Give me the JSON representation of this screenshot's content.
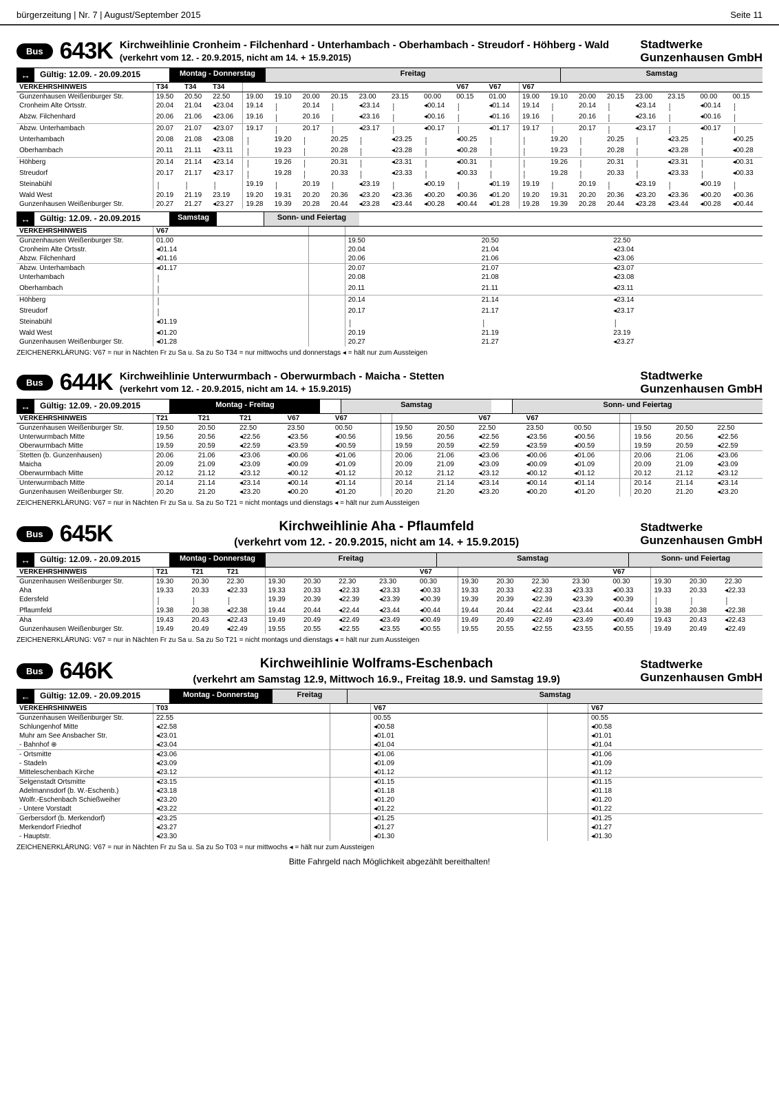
{
  "page": {
    "header_left": "bürgerzeitung | Nr. 7 | August/September 2015",
    "header_right": "Seite 11"
  },
  "brand_top": "Stadtwerke",
  "brand_bottom": "Gunzenhausen GmbH",
  "bus_label": "Bus",
  "valid_label": "Gültig: 12.09. - 20.09.2015",
  "arrow_both": "↔",
  "arrow_left": "←",
  "line_643k": {
    "number": "643K",
    "title": "Kirchweihlinie Cronheim - Filchenhard - Unterhambach - Oberhambach - Streudorf - Höhberg - Wald",
    "subtitle": "(verkehrt vom 12. - 20.9.2015, nicht am 14. + 15.9.2015)",
    "dh_monthu": "Montag - Donnerstag",
    "dh_fri": "Freitag",
    "dh_sat": "Samstag",
    "dh_sun": "Sonn- und Feiertag",
    "vh": "VERKEHRSHINWEIS",
    "hints_a": [
      "T34",
      "T34",
      "T34",
      "",
      "",
      "",
      "",
      "",
      "",
      "",
      "V67",
      "V67",
      "V67",
      "",
      "",
      "",
      "",
      "",
      "",
      "",
      "V67",
      "V67"
    ],
    "sec1": {
      "stops": [
        "Gunzenhausen Weißenburger Str.",
        "Cronheim Alte Ortsstr.",
        "Abzw. Filchenhard"
      ],
      "mondo": [
        [
          "19.50",
          "20.50",
          "22.50"
        ],
        [
          "20.04",
          "21.04",
          "◂23.04"
        ],
        [
          "20.06",
          "21.06",
          "◂23.06"
        ]
      ],
      "fri": [
        [
          "19.00",
          "19.10",
          "20.00",
          "20.15",
          "23.00",
          "23.15",
          "00.00",
          "00.15",
          "01.00"
        ],
        [
          "19.14",
          "⸽",
          "20.14",
          "⸽",
          "◂23.14",
          "⸽",
          "◂00.14",
          "⸽",
          "◂01.14"
        ],
        [
          "19.16",
          "⸽",
          "20.16",
          "⸽",
          "◂23.16",
          "⸽",
          "◂00.16",
          "⸽",
          "◂01.16"
        ]
      ],
      "sat": [
        [
          "19.00",
          "19.10",
          "20.00",
          "20.15",
          "23.00",
          "23.15",
          "00.00",
          "00.15"
        ],
        [
          "19.14",
          "⸽",
          "20.14",
          "⸽",
          "◂23.14",
          "⸽",
          "◂00.14",
          "⸽"
        ],
        [
          "19.16",
          "⸽",
          "20.16",
          "⸽",
          "◂23.16",
          "⸽",
          "◂00.16",
          "⸽"
        ]
      ]
    },
    "sec2": {
      "stops": [
        "Abzw. Unterhambach",
        "Unterhambach",
        "Oberhambach"
      ],
      "mondo": [
        [
          "20.07",
          "21.07",
          "◂23.07"
        ],
        [
          "20.08",
          "21.08",
          "◂23.08"
        ],
        [
          "20.11",
          "21.11",
          "◂23.11"
        ]
      ],
      "fri": [
        [
          "19.17",
          "⸽",
          "20.17",
          "⸽",
          "◂23.17",
          "⸽",
          "◂00.17",
          "⸽",
          "◂01.17"
        ],
        [
          "⸽",
          "19.20",
          "⸽",
          "20.25",
          "⸽",
          "◂23.25",
          "⸽",
          "◂00.25",
          "⸽"
        ],
        [
          "⸽",
          "19.23",
          "⸽",
          "20.28",
          "⸽",
          "◂23.28",
          "⸽",
          "◂00.28",
          "⸽"
        ]
      ],
      "sat": [
        [
          "19.17",
          "⸽",
          "20.17",
          "⸽",
          "◂23.17",
          "⸽",
          "◂00.17",
          "⸽"
        ],
        [
          "⸽",
          "19.20",
          "⸽",
          "20.25",
          "⸽",
          "◂23.25",
          "⸽",
          "◂00.25"
        ],
        [
          "⸽",
          "19.23",
          "⸽",
          "20.28",
          "⸽",
          "◂23.28",
          "⸽",
          "◂00.28"
        ]
      ]
    },
    "sec3": {
      "stops": [
        "Höhberg",
        "Streudorf",
        "Steinabühl",
        "Wald West",
        "Gunzenhausen Weißenburger Str."
      ],
      "mondo": [
        [
          "20.14",
          "21.14",
          "◂23.14"
        ],
        [
          "20.17",
          "21.17",
          "◂23.17"
        ],
        [
          "⸽",
          "⸽",
          "⸽"
        ],
        [
          "20.19",
          "21.19",
          "23.19"
        ],
        [
          "20.27",
          "21.27",
          "◂23.27"
        ]
      ],
      "fri": [
        [
          "⸽",
          "19.26",
          "⸽",
          "20.31",
          "⸽",
          "◂23.31",
          "⸽",
          "◂00.31",
          "⸽"
        ],
        [
          "⸽",
          "19.28",
          "⸽",
          "20.33",
          "⸽",
          "◂23.33",
          "⸽",
          "◂00.33",
          "⸽"
        ],
        [
          "19.19",
          "⸽",
          "20.19",
          "⸽",
          "◂23.19",
          "⸽",
          "◂00.19",
          "⸽",
          "◂01.19"
        ],
        [
          "19.20",
          "19.31",
          "20.20",
          "20.36",
          "◂23.20",
          "◂23.36",
          "◂00.20",
          "◂00.36",
          "◂01.20"
        ],
        [
          "19.28",
          "19.39",
          "20.28",
          "20.44",
          "◂23.28",
          "◂23.44",
          "◂00.28",
          "◂00.44",
          "◂01.28"
        ]
      ],
      "sat": [
        [
          "⸽",
          "19.26",
          "⸽",
          "20.31",
          "⸽",
          "◂23.31",
          "⸽",
          "◂00.31"
        ],
        [
          "⸽",
          "19.28",
          "⸽",
          "20.33",
          "⸽",
          "◂23.33",
          "⸽",
          "◂00.33"
        ],
        [
          "19.19",
          "⸽",
          "20.19",
          "⸽",
          "◂23.19",
          "⸽",
          "◂00.19",
          "⸽"
        ],
        [
          "19.20",
          "19.31",
          "20.20",
          "20.36",
          "◂23.20",
          "◂23.36",
          "◂00.20",
          "◂00.36"
        ],
        [
          "19.28",
          "19.39",
          "20.28",
          "20.44",
          "◂23.28",
          "◂23.44",
          "◂00.28",
          "◂00.44"
        ]
      ]
    },
    "return_dh_sat": "Samstag",
    "return_dh_sun": "Sonn- und Feiertag",
    "return_hints": [
      "V67"
    ],
    "rsec1": {
      "stops": [
        "Gunzenhausen Weißenburger Str.",
        "Cronheim Alte Ortsstr.",
        "Abzw. Filchenhard"
      ],
      "sat": [
        [
          "01.00"
        ],
        [
          "◂01.14"
        ],
        [
          "◂01.16"
        ]
      ],
      "sun": [
        [
          "19.50",
          "20.50",
          "22.50"
        ],
        [
          "20.04",
          "21.04",
          "◂23.04"
        ],
        [
          "20.06",
          "21.06",
          "◂23.06"
        ]
      ]
    },
    "rsec2": {
      "stops": [
        "Abzw. Unterhambach",
        "Unterhambach",
        "Oberhambach"
      ],
      "sat": [
        [
          "◂01.17"
        ],
        [
          "⸽"
        ],
        [
          "⸽"
        ]
      ],
      "sun": [
        [
          "20.07",
          "21.07",
          "◂23.07"
        ],
        [
          "20.08",
          "21.08",
          "◂23.08"
        ],
        [
          "20.11",
          "21.11",
          "◂23.11"
        ]
      ]
    },
    "rsec3": {
      "stops": [
        "Höhberg",
        "Streudorf",
        "Steinabühl",
        "Wald West",
        "Gunzenhausen Weißenburger Str."
      ],
      "sat": [
        [
          "⸽"
        ],
        [
          "⸽"
        ],
        [
          "◂01.19"
        ],
        [
          "◂01.20"
        ],
        [
          "◂01.28"
        ]
      ],
      "sun": [
        [
          "20.14",
          "21.14",
          "◂23.14"
        ],
        [
          "20.17",
          "21.17",
          "◂23.17"
        ],
        [
          "⸽",
          "⸽",
          "⸽"
        ],
        [
          "20.19",
          "21.19",
          "23.19"
        ],
        [
          "20.27",
          "21.27",
          "◂23.27"
        ]
      ]
    },
    "footnote": "ZEICHENERKLÄRUNG:  V67 = nur in Nächten Fr zu Sa u. Sa zu So   T34 = nur mittwochs und donnerstags   ◂ = hält nur zum Aussteigen"
  },
  "line_644k": {
    "number": "644K",
    "title": "Kirchweihlinie Unterwurmbach - Oberwurmbach - Maicha - Stetten",
    "subtitle": "(verkehrt vom 12. - 20.9.2015, nicht am 14. + 15.9.2015)",
    "dh_monfri": "Montag - Freitag",
    "dh_sat": "Samstag",
    "dh_sun": "Sonn- und Feiertag",
    "vh": "VERKEHRSHINWEIS",
    "hints": [
      "T21",
      "T21",
      "T21",
      "V67",
      "V67",
      "",
      "",
      "",
      "V67",
      "V67",
      "",
      "",
      ""
    ],
    "sec1": {
      "stops": [
        "Gunzenhausen Weißenburger Str.",
        "Unterwurmbach Mitte",
        "Oberwurmbach Mitte"
      ],
      "monfri": [
        [
          "19.50",
          "20.50",
          "22.50",
          "23.50",
          "00.50"
        ],
        [
          "19.56",
          "20.56",
          "◂22.56",
          "◂23.56",
          "◂00.56"
        ],
        [
          "19.59",
          "20.59",
          "◂22.59",
          "◂23.59",
          "◂00.59"
        ]
      ],
      "sat": [
        [
          "19.50",
          "20.50",
          "22.50",
          "23.50",
          "00.50"
        ],
        [
          "19.56",
          "20.56",
          "◂22.56",
          "◂23.56",
          "◂00.56"
        ],
        [
          "19.59",
          "20.59",
          "◂22.59",
          "◂23.59",
          "◂00.59"
        ]
      ],
      "sun": [
        [
          "19.50",
          "20.50",
          "22.50"
        ],
        [
          "19.56",
          "20.56",
          "◂22.56"
        ],
        [
          "19.59",
          "20.59",
          "◂22.59"
        ]
      ]
    },
    "sec2": {
      "stops": [
        "Stetten (b. Gunzenhausen)",
        "Maicha",
        "Oberwurmbach Mitte"
      ],
      "monfri": [
        [
          "20.06",
          "21.06",
          "◂23.06",
          "◂00.06",
          "◂01.06"
        ],
        [
          "20.09",
          "21.09",
          "◂23.09",
          "◂00.09",
          "◂01.09"
        ],
        [
          "20.12",
          "21.12",
          "◂23.12",
          "◂00.12",
          "◂01.12"
        ]
      ],
      "sat": [
        [
          "20.06",
          "21.06",
          "◂23.06",
          "◂00.06",
          "◂01.06"
        ],
        [
          "20.09",
          "21.09",
          "◂23.09",
          "◂00.09",
          "◂01.09"
        ],
        [
          "20.12",
          "21.12",
          "◂23.12",
          "◂00.12",
          "◂01.12"
        ]
      ],
      "sun": [
        [
          "20.06",
          "21.06",
          "◂23.06"
        ],
        [
          "20.09",
          "21.09",
          "◂23.09"
        ],
        [
          "20.12",
          "21.12",
          "◂23.12"
        ]
      ]
    },
    "sec3": {
      "stops": [
        "Unterwurmbach Mitte",
        "Gunzenhausen Weißenburger Str."
      ],
      "monfri": [
        [
          "20.14",
          "21.14",
          "◂23.14",
          "◂00.14",
          "◂01.14"
        ],
        [
          "20.20",
          "21.20",
          "◂23.20",
          "◂00.20",
          "◂01.20"
        ]
      ],
      "sat": [
        [
          "20.14",
          "21.14",
          "◂23.14",
          "◂00.14",
          "◂01.14"
        ],
        [
          "20.20",
          "21.20",
          "◂23.20",
          "◂00.20",
          "◂01.20"
        ]
      ],
      "sun": [
        [
          "20.14",
          "21.14",
          "◂23.14"
        ],
        [
          "20.20",
          "21.20",
          "◂23.20"
        ]
      ]
    },
    "footnote": "ZEICHENERKLÄRUNG:  V67 = nur in Nächten Fr zu Sa u. Sa zu So   T21 = nicht montags und dienstags   ◂ = hält nur zum Aussteigen"
  },
  "line_645k": {
    "number": "645K",
    "title": "Kirchweihlinie Aha - Pflaumfeld",
    "subtitle": "(verkehrt vom 12. - 20.9.2015, nicht am 14. + 15.9.2015)",
    "dh_mondo": "Montag - Donnerstag",
    "dh_fri": "Freitag",
    "dh_sat": "Samstag",
    "dh_sun": "Sonn- und Feiertag",
    "vh": "VERKEHRSHINWEIS",
    "hints": [
      "T21",
      "T21",
      "T21",
      "",
      "",
      "",
      "",
      "V67",
      "",
      "",
      "",
      "",
      "V67",
      ""
    ],
    "sec1": {
      "stops": [
        "Gunzenhausen Weißenburger Str.",
        "Aha",
        "Edersfeld",
        "Pflaumfeld"
      ],
      "mondo": [
        [
          "19.30",
          "20.30",
          "22.30"
        ],
        [
          "19.33",
          "20.33",
          "◂22.33"
        ],
        [
          "⸽",
          "⸽",
          "⸽"
        ],
        [
          "19.38",
          "20.38",
          "◂22.38"
        ]
      ],
      "fri": [
        [
          "19.30",
          "20.30",
          "22.30",
          "23.30",
          "00.30"
        ],
        [
          "19.33",
          "20.33",
          "◂22.33",
          "◂23.33",
          "◂00.33"
        ],
        [
          "19.39",
          "20.39",
          "◂22.39",
          "◂23.39",
          "◂00.39"
        ],
        [
          "19.44",
          "20.44",
          "◂22.44",
          "◂23.44",
          "◂00.44"
        ]
      ],
      "sat": [
        [
          "19.30",
          "20.30",
          "22.30",
          "23.30",
          "00.30"
        ],
        [
          "19.33",
          "20.33",
          "◂22.33",
          "◂23.33",
          "◂00.33"
        ],
        [
          "19.39",
          "20.39",
          "◂22.39",
          "◂23.39",
          "◂00.39"
        ],
        [
          "19.44",
          "20.44",
          "◂22.44",
          "◂23.44",
          "◂00.44"
        ]
      ],
      "sun": [
        [
          "19.30",
          "20.30",
          "22.30"
        ],
        [
          "19.33",
          "20.33",
          "◂22.33"
        ],
        [
          "⸽",
          "⸽",
          "⸽"
        ],
        [
          "19.38",
          "20.38",
          "◂22.38"
        ]
      ]
    },
    "sec2": {
      "stops": [
        "Aha",
        "Gunzenhausen Weißenburger Str."
      ],
      "mondo": [
        [
          "19.43",
          "20.43",
          "◂22.43"
        ],
        [
          "19.49",
          "20.49",
          "◂22.49"
        ]
      ],
      "fri": [
        [
          "19.49",
          "20.49",
          "◂22.49",
          "◂23.49",
          "◂00.49"
        ],
        [
          "19.55",
          "20.55",
          "◂22.55",
          "◂23.55",
          "◂00.55"
        ]
      ],
      "sat": [
        [
          "19.49",
          "20.49",
          "◂22.49",
          "◂23.49",
          "◂00.49"
        ],
        [
          "19.55",
          "20.55",
          "◂22.55",
          "◂23.55",
          "◂00.55"
        ]
      ],
      "sun": [
        [
          "19.43",
          "20.43",
          "◂22.43"
        ],
        [
          "19.49",
          "20.49",
          "◂22.49"
        ]
      ]
    },
    "footnote": "ZEICHENERKLÄRUNG:  V67 = nur in Nächten Fr zu Sa u. Sa zu So   T21 = nicht montags und dienstags   ◂ = hält nur zum Aussteigen"
  },
  "line_646k": {
    "number": "646K",
    "title": "Kirchweihlinie Wolframs-Eschenbach",
    "subtitle": "(verkehrt am Samstag 12.9, Mittwoch 16.9., Freitag 18.9. und Samstag 19.9)",
    "dh_mondo": "Montag - Donnerstag",
    "dh_fri": "Freitag",
    "dh_sat": "Samstag",
    "vh": "VERKEHRSHINWEIS",
    "hints": [
      "T03",
      "V67",
      "V67"
    ],
    "sec1": {
      "stops": [
        "Gunzenhausen Weißenburger Str.",
        "Schlungenhof Mitte",
        "Muhr am See Ansbacher Str.",
        "- Bahnhof ⊕"
      ],
      "mondo": [
        [
          "22.55"
        ],
        [
          "◂22.58"
        ],
        [
          "◂23.01"
        ],
        [
          "◂23.04"
        ]
      ],
      "fri": [
        [
          "00.55"
        ],
        [
          "◂00.58"
        ],
        [
          "◂01.01"
        ],
        [
          "◂01.04"
        ]
      ],
      "sat": [
        [
          "00.55"
        ],
        [
          "◂00.58"
        ],
        [
          "◂01.01"
        ],
        [
          "◂01.04"
        ]
      ]
    },
    "sec2": {
      "stops": [
        "- Ortsmitte",
        "- Stadeln",
        "Mitteleschenbach Kirche"
      ],
      "mondo": [
        [
          "◂23.06"
        ],
        [
          "◂23.09"
        ],
        [
          "◂23.12"
        ]
      ],
      "fri": [
        [
          "◂01.06"
        ],
        [
          "◂01.09"
        ],
        [
          "◂01.12"
        ]
      ],
      "sat": [
        [
          "◂01.06"
        ],
        [
          "◂01.09"
        ],
        [
          "◂01.12"
        ]
      ]
    },
    "sec3": {
      "stops": [
        "Selgenstadt Ortsmitte",
        "Adelmannsdorf (b. W.-Eschenb.)",
        "Wolfr.-Eschenbach Schießweiher",
        "- Untere Vorstadt"
      ],
      "mondo": [
        [
          "◂23.15"
        ],
        [
          "◂23.18"
        ],
        [
          "◂23.20"
        ],
        [
          "◂23.22"
        ]
      ],
      "fri": [
        [
          "◂01.15"
        ],
        [
          "◂01.18"
        ],
        [
          "◂01.20"
        ],
        [
          "◂01.22"
        ]
      ],
      "sat": [
        [
          "◂01.15"
        ],
        [
          "◂01.18"
        ],
        [
          "◂01.20"
        ],
        [
          "◂01.22"
        ]
      ]
    },
    "sec4": {
      "stops": [
        "Gerbersdorf (b. Merkendorf)",
        "Merkendorf Friedhof",
        "- Hauptstr."
      ],
      "mondo": [
        [
          "◂23.25"
        ],
        [
          "◂23.27"
        ],
        [
          "◂23.30"
        ]
      ],
      "fri": [
        [
          "◂01.25"
        ],
        [
          "◂01.27"
        ],
        [
          "◂01.30"
        ]
      ],
      "sat": [
        [
          "◂01.25"
        ],
        [
          "◂01.27"
        ],
        [
          "◂01.30"
        ]
      ]
    },
    "footnote": "ZEICHENERKLÄRUNG:  V67 = nur in Nächten Fr zu Sa u. Sa zu So   T03 = nur mittwochs   ◂ = hält nur zum Aussteigen",
    "bottom_note": "Bitte Fahrgeld nach Möglichkeit abgezählt bereithalten!"
  }
}
